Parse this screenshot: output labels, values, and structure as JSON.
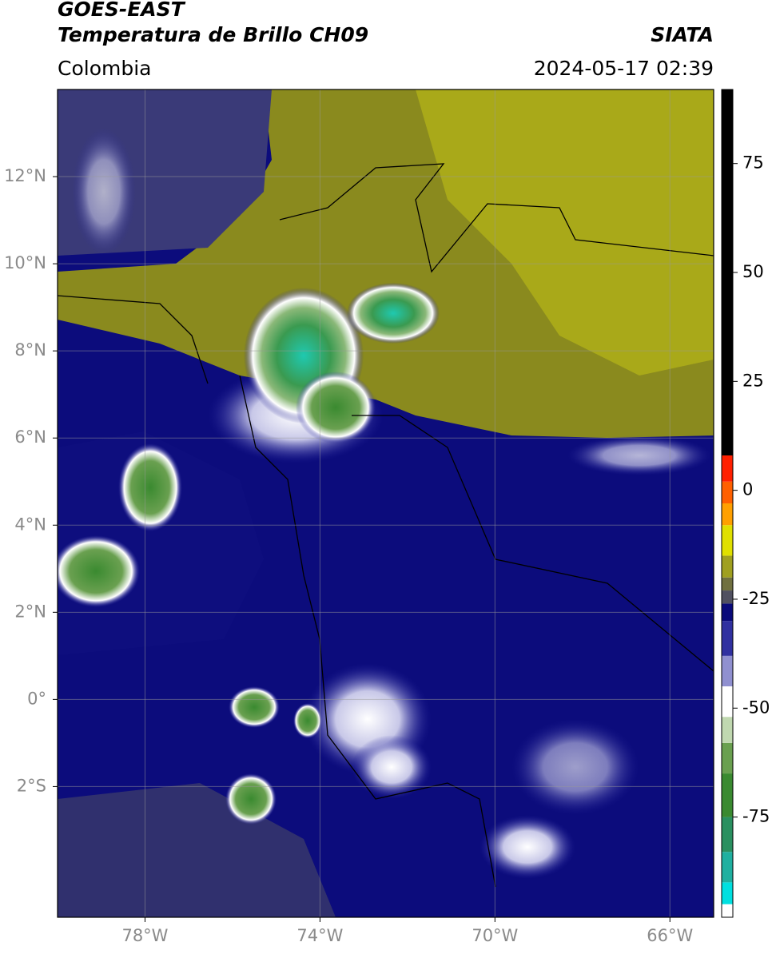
{
  "header": {
    "title": "GOES-EAST",
    "subtitle": "Temperatura de Brillo CH09",
    "region": "Colombia",
    "source": "SIATA",
    "datetime": "2024-05-17 02:39"
  },
  "map": {
    "xlim": [
      -80,
      -65
    ],
    "ylim": [
      -5,
      14
    ],
    "xticks": [
      {
        "value": -78,
        "label": "78°W"
      },
      {
        "value": -74,
        "label": "74°W"
      },
      {
        "value": -70,
        "label": "70°W"
      },
      {
        "value": -66,
        "label": "66°W"
      }
    ],
    "yticks": [
      {
        "value": 12,
        "label": "12°N"
      },
      {
        "value": 10,
        "label": "10°N"
      },
      {
        "value": 8,
        "label": "8°N"
      },
      {
        "value": 6,
        "label": "6°N"
      },
      {
        "value": 4,
        "label": "4°N"
      },
      {
        "value": 2,
        "label": "2°N"
      },
      {
        "value": 0,
        "label": "0°"
      },
      {
        "value": -2,
        "label": "2°S"
      }
    ],
    "grid": true
  },
  "colorbar": {
    "lim": [
      -98,
      92
    ],
    "ticks": [
      75,
      50,
      25,
      0,
      -25,
      -50,
      -75
    ],
    "stops": [
      {
        "value": -98,
        "color": "#ffffff"
      },
      {
        "value": -95,
        "color": "#00e0e0"
      },
      {
        "value": -90,
        "color": "#20b0a0"
      },
      {
        "value": -83,
        "color": "#2a9060"
      },
      {
        "value": -75,
        "color": "#3a8a30"
      },
      {
        "value": -65,
        "color": "#6aa050"
      },
      {
        "value": -58,
        "color": "#c0d8b0"
      },
      {
        "value": -52,
        "color": "#ffffff"
      },
      {
        "value": -45,
        "color": "#9090d0"
      },
      {
        "value": -38,
        "color": "#3030a0"
      },
      {
        "value": -30,
        "color": "#0a0a7a"
      },
      {
        "value": -26,
        "color": "#505060"
      },
      {
        "value": -23,
        "color": "#707040"
      },
      {
        "value": -20,
        "color": "#a0a020"
      },
      {
        "value": -15,
        "color": "#e0e000"
      },
      {
        "value": -8,
        "color": "#ffa000"
      },
      {
        "value": -3,
        "color": "#ff6000"
      },
      {
        "value": 2,
        "color": "#ff2000"
      },
      {
        "value": 8,
        "color": "#000000"
      }
    ]
  }
}
